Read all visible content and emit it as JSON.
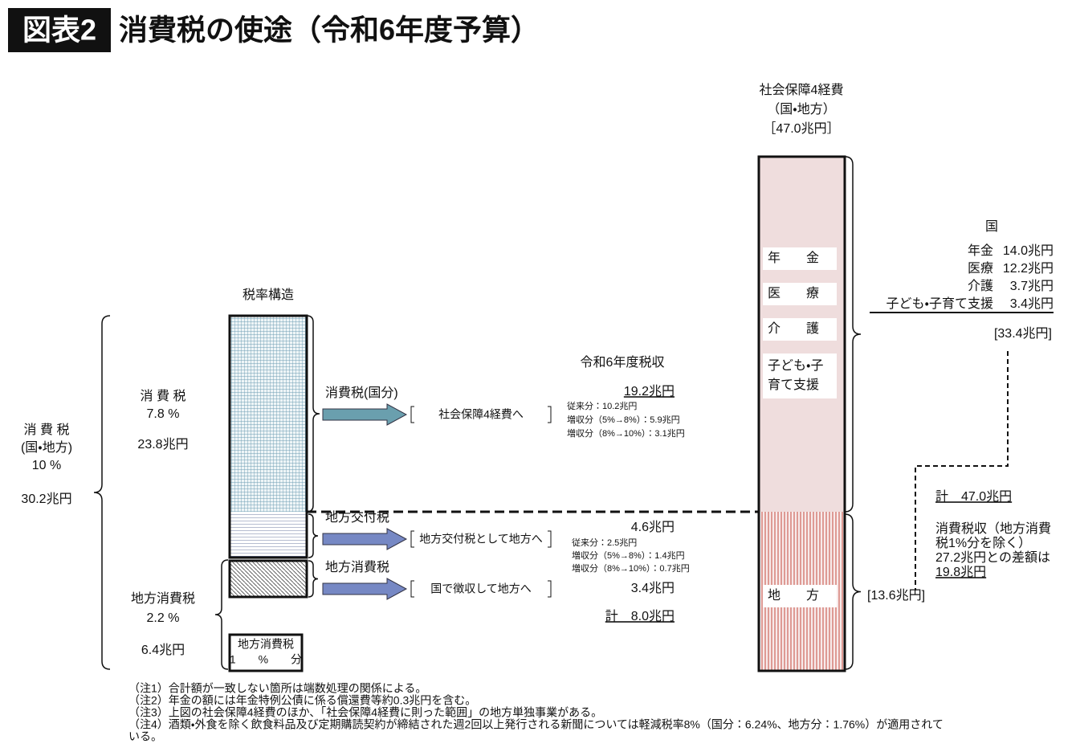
{
  "header": {
    "badge": "図表2",
    "title": "消費税の使途（令和6年度予算）"
  },
  "left": {
    "total": {
      "name": "消 費 税",
      "scope": "(国・地方)",
      "rate": "10 %",
      "amount": "30.2兆円"
    },
    "national": {
      "name": "消 費 税",
      "rate": "7.8 %",
      "amount": "23.8兆円"
    },
    "local": {
      "name": "地方消費税",
      "rate": "2.2 %",
      "amount": "6.4兆円"
    }
  },
  "tax_structure": {
    "title": "税率構造",
    "small_box": [
      "地方消費税",
      "1　　%　　分"
    ]
  },
  "flows": [
    {
      "source": "消費税(国分)",
      "destination": "社会保障4経費へ"
    },
    {
      "source": "地方交付税",
      "destination": "地方交付税として地方へ"
    },
    {
      "source": "地方消費税",
      "destination": "国で徴収して地方へ"
    }
  ],
  "revenue": {
    "title": "令和6年度税収",
    "national": {
      "amount": "19.2兆円",
      "breakdown": [
        "従来分：10.2兆円",
        "増収分（5%→8%）：5.9兆円",
        "増収分（8%→10%）：3.1兆円"
      ]
    },
    "allocation": {
      "amount": "4.6兆円",
      "breakdown": [
        "従来分：2.5兆円",
        "増収分（5%→8%）：1.4兆円",
        "増収分（8%→10%）：0.7兆円"
      ]
    },
    "local": {
      "amount": "3.4兆円"
    },
    "total": "計　8.0兆円"
  },
  "social_security": {
    "title": [
      "社会保障4経費",
      "（国・地方）",
      "［47.0兆円］"
    ],
    "bar_labels": [
      "年　　金",
      "医　　療",
      "介　　護",
      "子ども・子",
      "育て支援"
    ],
    "local_label": "地　　方"
  },
  "national_side": {
    "title": "国",
    "items": [
      {
        "name": "年金",
        "amount": "14.0兆円"
      },
      {
        "name": "医療",
        "amount": "12.2兆円"
      },
      {
        "name": "介護",
        "amount": "3.7兆円"
      },
      {
        "name": "子ども・子育て支援",
        "amount": "3.4兆円"
      }
    ],
    "subtotal": "[33.4兆円]",
    "local_subtotal": "[13.6兆円]",
    "total": "計　47.0兆円",
    "gap_note": [
      "消費税収（地方消費",
      "税1%分を除く）",
      "27.2兆円との差額は",
      "19.8兆円"
    ]
  },
  "notes": [
    "（注1）合計額が一致しない箇所は端数処理の関係による。",
    "（注2）年金の額には年金特例公債に係る償還費等約0.3兆円を含む。",
    "（注3）上図の社会保障4経費のほか、「社会保障4経費に則った範囲」の地方単独事業がある。",
    "（注4）酒類・外食を除く飲食料品及び定期購読契約が締結された週2回以上発行される新聞については軽減税率8%（国分：6.24%、地方分：1.76%）が適用されて",
    "いる。"
  ]
}
